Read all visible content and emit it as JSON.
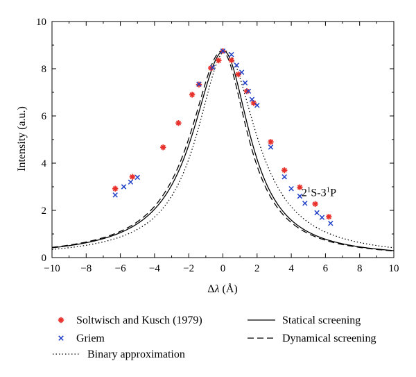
{
  "chart_data": {
    "type": "scatter",
    "xlabel_prefix": "Δ",
    "xlabel_var": "λ",
    "xlabel_suffix": " (Å)",
    "ylabel": "Intensity (a.u.)",
    "xlim": [
      -10,
      10
    ],
    "ylim": [
      0,
      10
    ],
    "x_ticks": [
      -10,
      -8,
      -6,
      -4,
      -2,
      0,
      2,
      4,
      6,
      8,
      10
    ],
    "x_tick_labels": [
      "−10",
      "−8",
      "−6",
      "−4",
      "−2",
      "0",
      "2",
      "4",
      "6",
      "8",
      "10"
    ],
    "y_ticks": [
      0,
      2,
      4,
      6,
      8,
      10
    ],
    "y_tick_labels": [
      "0",
      "2",
      "4",
      "6",
      "8",
      "10"
    ],
    "grid": false,
    "annotation": {
      "base": "2",
      "sup1": "1",
      "mid": "S-3",
      "sup2": "1",
      "end": "P",
      "x": 4.6,
      "y": 2.6
    },
    "series": [
      {
        "name": "Soltwisch and Kusch (1979)",
        "kind": "points",
        "marker": "asterisk",
        "color": "#e8302a",
        "x": [
          -6.3,
          -5.3,
          -3.5,
          -2.6,
          -1.8,
          -1.4,
          -0.7,
          -0.25,
          0.0,
          0.5,
          0.9,
          1.4,
          1.8,
          2.8,
          3.6,
          4.5,
          5.4,
          6.2
        ],
        "y": [
          2.92,
          3.42,
          4.67,
          5.7,
          6.9,
          7.33,
          8.03,
          8.35,
          8.75,
          8.36,
          7.76,
          7.05,
          6.55,
          4.9,
          3.7,
          2.98,
          2.27,
          1.73
        ]
      },
      {
        "name": "Griem",
        "kind": "points",
        "marker": "cross",
        "color": "#1f3fc8",
        "x": [
          -6.3,
          -5.8,
          -5.4,
          -5.0,
          -1.4,
          -0.6,
          0.0,
          0.5,
          0.8,
          1.1,
          1.3,
          1.5,
          1.7,
          2.0,
          2.8,
          3.6,
          4.0,
          4.5,
          4.8,
          5.5,
          5.8,
          6.3
        ],
        "y": [
          2.65,
          3.0,
          3.2,
          3.4,
          7.35,
          8.05,
          8.75,
          8.6,
          8.15,
          7.85,
          7.4,
          7.05,
          6.7,
          6.45,
          4.68,
          3.42,
          2.92,
          2.6,
          2.3,
          1.9,
          1.7,
          1.45
        ]
      },
      {
        "name": "Statical screening",
        "kind": "line",
        "style": "solid",
        "center": 0.05,
        "gamma_left": 2.24,
        "gamma_right": 1.86,
        "peak": 8.75
      },
      {
        "name": "Dynamical screening",
        "kind": "line",
        "style": "dashed",
        "center": -0.05,
        "gamma_left": 2.27,
        "gamma_right": 1.83,
        "peak": 8.75
      },
      {
        "name": "Binary approximation",
        "kind": "line",
        "style": "dotted",
        "center": 0.15,
        "gamma_left": 2.05,
        "gamma_right": 2.2,
        "peak": 8.75
      }
    ],
    "legend": {
      "left_column": [
        "Soltwisch and Kusch (1979)",
        "Griem",
        "Binary approximation"
      ],
      "right_column": [
        "Statical screening",
        "Dynamical screening"
      ]
    }
  }
}
